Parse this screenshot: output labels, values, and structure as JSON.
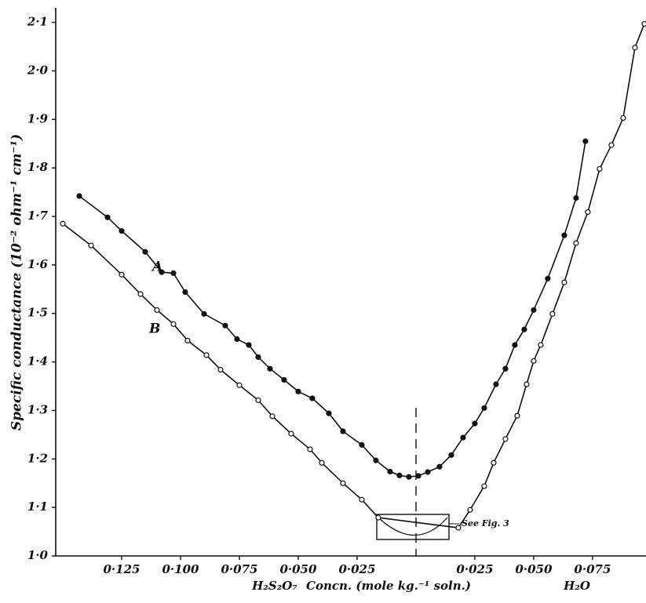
{
  "chart_data": {
    "type": "scatter",
    "y_label": "Specific conductance (10⁻² ohm⁻¹ cm⁻¹)",
    "x_label_left": "H₂S₂O₇",
    "x_label": "Concn. (mole kg.⁻¹ soln.)",
    "x_label_right": "H₂O",
    "annotations": [
      "A",
      "B",
      "See Fig. 3"
    ],
    "xlim": [
      -0.153,
      0.0977
    ],
    "ylim": [
      1.0,
      2.13
    ],
    "xticks": [
      {
        "value": -0.125,
        "label": "0·125"
      },
      {
        "value": -0.1,
        "label": "0·100"
      },
      {
        "value": -0.075,
        "label": "0·075"
      },
      {
        "value": -0.05,
        "label": "0·050"
      },
      {
        "value": -0.025,
        "label": "0·025"
      },
      {
        "value": 0.025,
        "label": "0·025"
      },
      {
        "value": 0.05,
        "label": "0·050"
      },
      {
        "value": 0.075,
        "label": "0·075"
      }
    ],
    "yticks": [
      {
        "value": 1.0,
        "label": "1·0"
      },
      {
        "value": 1.1,
        "label": "1·1"
      },
      {
        "value": 1.2,
        "label": "1·2"
      },
      {
        "value": 1.3,
        "label": "1·3"
      },
      {
        "value": 1.4,
        "label": "1·4"
      },
      {
        "value": 1.5,
        "label": "1·5"
      },
      {
        "value": 1.6,
        "label": "1·6"
      },
      {
        "value": 1.7,
        "label": "1·7"
      },
      {
        "value": 1.8,
        "label": "1·8"
      },
      {
        "value": 1.9,
        "label": "1·9"
      },
      {
        "value": 2.0,
        "label": "2·0"
      },
      {
        "value": 2.1,
        "label": "2·1"
      }
    ],
    "series": [
      {
        "marker": "filled",
        "color": "#111111",
        "x": [
          -0.143,
          -0.131,
          -0.125,
          -0.115,
          -0.108,
          -0.103,
          -0.098,
          -0.09,
          -0.081,
          -0.076,
          -0.071,
          -0.067,
          -0.062,
          -0.056,
          -0.05,
          -0.044,
          -0.037,
          -0.031,
          -0.023,
          -0.017,
          -0.011,
          -0.007,
          -0.003,
          0.001,
          0.005,
          0.01,
          0.015,
          0.02,
          0.025,
          0.029,
          0.034,
          0.038,
          0.042,
          0.046,
          0.05,
          0.056,
          0.063,
          0.068,
          0.072
        ],
        "values": [
          1.742,
          1.698,
          1.67,
          1.627,
          1.585,
          1.583,
          1.544,
          1.499,
          1.475,
          1.447,
          1.435,
          1.41,
          1.386,
          1.363,
          1.339,
          1.325,
          1.294,
          1.257,
          1.229,
          1.197,
          1.174,
          1.166,
          1.163,
          1.165,
          1.173,
          1.184,
          1.208,
          1.244,
          1.273,
          1.305,
          1.354,
          1.386,
          1.435,
          1.467,
          1.507,
          1.572,
          1.661,
          1.738,
          1.855
        ]
      },
      {
        "marker": "open",
        "color": "#111111",
        "x": [
          -0.15,
          -0.138,
          -0.125,
          -0.117,
          -0.11,
          -0.103,
          -0.097,
          -0.089,
          -0.083,
          -0.075,
          -0.067,
          -0.061,
          -0.053,
          -0.045,
          -0.04,
          -0.031,
          -0.023,
          -0.016,
          0.018,
          0.023,
          0.029,
          0.033,
          0.038,
          0.043,
          0.047,
          0.05,
          0.053,
          0.058,
          0.063,
          0.068,
          0.073,
          0.078,
          0.083,
          0.088,
          0.093,
          0.097
        ],
        "values": [
          1.685,
          1.64,
          1.58,
          1.54,
          1.507,
          1.478,
          1.444,
          1.414,
          1.384,
          1.352,
          1.321,
          1.288,
          1.252,
          1.22,
          1.192,
          1.15,
          1.116,
          1.079,
          1.058,
          1.095,
          1.144,
          1.192,
          1.241,
          1.289,
          1.354,
          1.402,
          1.435,
          1.499,
          1.564,
          1.645,
          1.709,
          1.798,
          1.847,
          1.903,
          2.048,
          2.097
        ]
      }
    ]
  }
}
